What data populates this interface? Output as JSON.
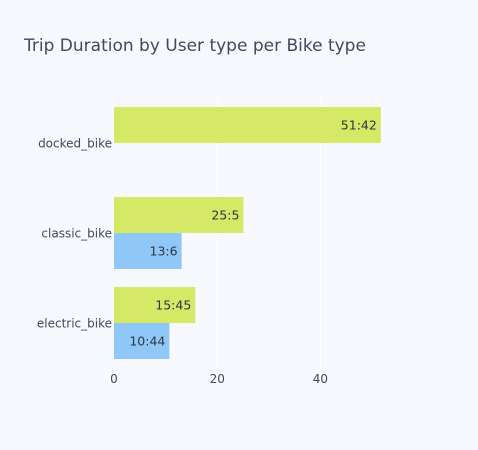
{
  "chart_data": {
    "type": "bar",
    "orientation": "horizontal",
    "barmode": "group",
    "title": "Trip Duration by User type per Bike type",
    "xlabel": "",
    "ylabel": "",
    "categories": [
      "docked_bike",
      "classic_bike",
      "electric_bike"
    ],
    "xlim": [
      0,
      52.7
    ],
    "xticks": [
      0,
      20,
      40
    ],
    "grid": true,
    "legend": "none",
    "series": [
      {
        "color": "#d5e966",
        "values": [
          51.7,
          25.08,
          15.75
        ],
        "labels": [
          "51:42",
          "25:5",
          "15:45"
        ]
      },
      {
        "color": "#8fc7f8",
        "values": [
          null,
          13.1,
          10.73
        ],
        "labels": [
          "",
          "13:6",
          "10:44"
        ]
      }
    ]
  }
}
